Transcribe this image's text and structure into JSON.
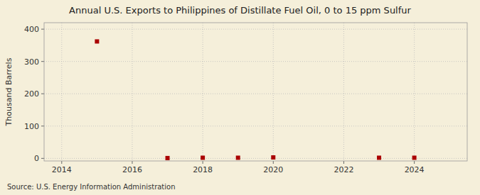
{
  "chart_data": {
    "type": "scatter",
    "title": "Annual U.S. Exports to Philippines of Distillate Fuel Oil, 0 to 15 ppm Sulfur",
    "ylabel": "Thousand Barrels",
    "annotations": [
      "Source: U.S. Energy Information Administration"
    ],
    "x": [
      2015,
      2017,
      2018,
      2019,
      2020,
      2023,
      2024
    ],
    "values": [
      362,
      1,
      2,
      2,
      3,
      2,
      2
    ],
    "color": "#aa0000",
    "marker": "square",
    "xlim": [
      2013.5,
      2025.5
    ],
    "ylim": [
      -8,
      420
    ],
    "xticks": [
      2014,
      2016,
      2018,
      2020,
      2022,
      2024
    ],
    "yticks": [
      0,
      100,
      200,
      300,
      400
    ],
    "grid": true
  }
}
